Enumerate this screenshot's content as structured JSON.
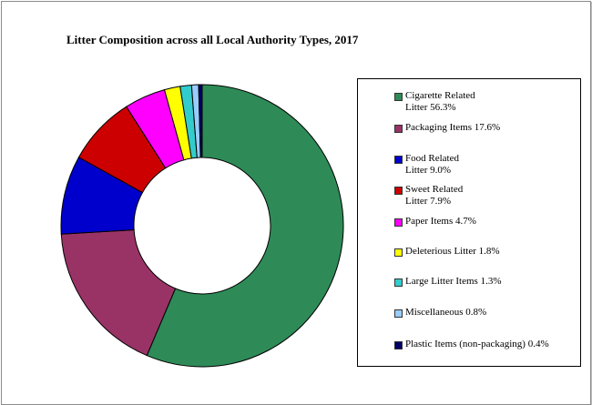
{
  "chart_data": {
    "type": "pie",
    "title": "Litter Composition across all Local Authority Types, 2017",
    "donut": true,
    "start_angle": "top",
    "direction": "clockwise",
    "legend_position": "right",
    "series": [
      {
        "name": "Cigarette Related Litter",
        "value": 56.3,
        "label": "Cigarette Related\nLitter 56.3%",
        "color": "#2e8b57"
      },
      {
        "name": "Packaging Items",
        "value": 17.6,
        "label": "Packaging Items 17.6%",
        "color": "#993366"
      },
      {
        "name": "Food Related Litter",
        "value": 9.0,
        "label": "Food Related\nLitter 9.0%",
        "color": "#0000cc"
      },
      {
        "name": "Sweet Related Litter",
        "value": 7.9,
        "label": "Sweet Related\nLitter 7.9%",
        "color": "#cc0000"
      },
      {
        "name": "Paper Items",
        "value": 4.7,
        "label": "Paper Items 4.7%",
        "color": "#ff00ff"
      },
      {
        "name": "Deleterious Litter",
        "value": 1.8,
        "label": "Deleterious Litter 1.8%",
        "color": "#ffff00"
      },
      {
        "name": "Large Litter Items",
        "value": 1.3,
        "label": "Large Litter Items 1.3%",
        "color": "#33cccc"
      },
      {
        "name": "Miscellaneous",
        "value": 0.8,
        "label": "Miscellaneous 0.8%",
        "color": "#99ccff"
      },
      {
        "name": "Plastic Items (non-packaging)",
        "value": 0.4,
        "label": "Plastic Items (non-packaging) 0.4%",
        "color": "#000066"
      }
    ]
  }
}
